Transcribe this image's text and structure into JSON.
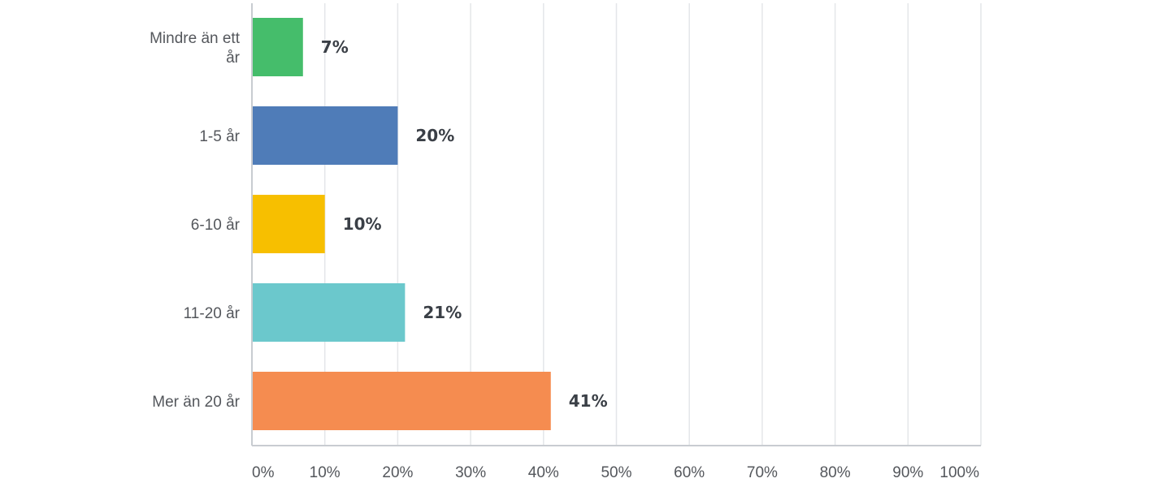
{
  "chart_data": {
    "type": "bar",
    "orientation": "horizontal",
    "title": "",
    "xlabel": "",
    "ylabel": "",
    "categories": [
      [
        "Mindre än ett",
        "år"
      ],
      [
        "1-5 år"
      ],
      [
        "6-10 år"
      ],
      [
        "11-20 år"
      ],
      [
        "Mer än 20 år"
      ]
    ],
    "values": [
      7,
      20,
      10,
      21,
      41
    ],
    "value_labels": [
      "7%",
      "20%",
      "10%",
      "21%",
      "41%"
    ],
    "colors": [
      "#45bd6b",
      "#4f7cb8",
      "#f7bf00",
      "#6bc8cc",
      "#f58c50"
    ],
    "xlim": [
      0,
      100
    ],
    "xticks": [
      0,
      10,
      20,
      30,
      40,
      50,
      60,
      70,
      80,
      90,
      100
    ],
    "xtick_labels": [
      "0%",
      "10%",
      "20%",
      "30%",
      "40%",
      "50%",
      "60%",
      "70%",
      "80%",
      "90%",
      "100%"
    ],
    "grid": true,
    "legend": "none"
  }
}
